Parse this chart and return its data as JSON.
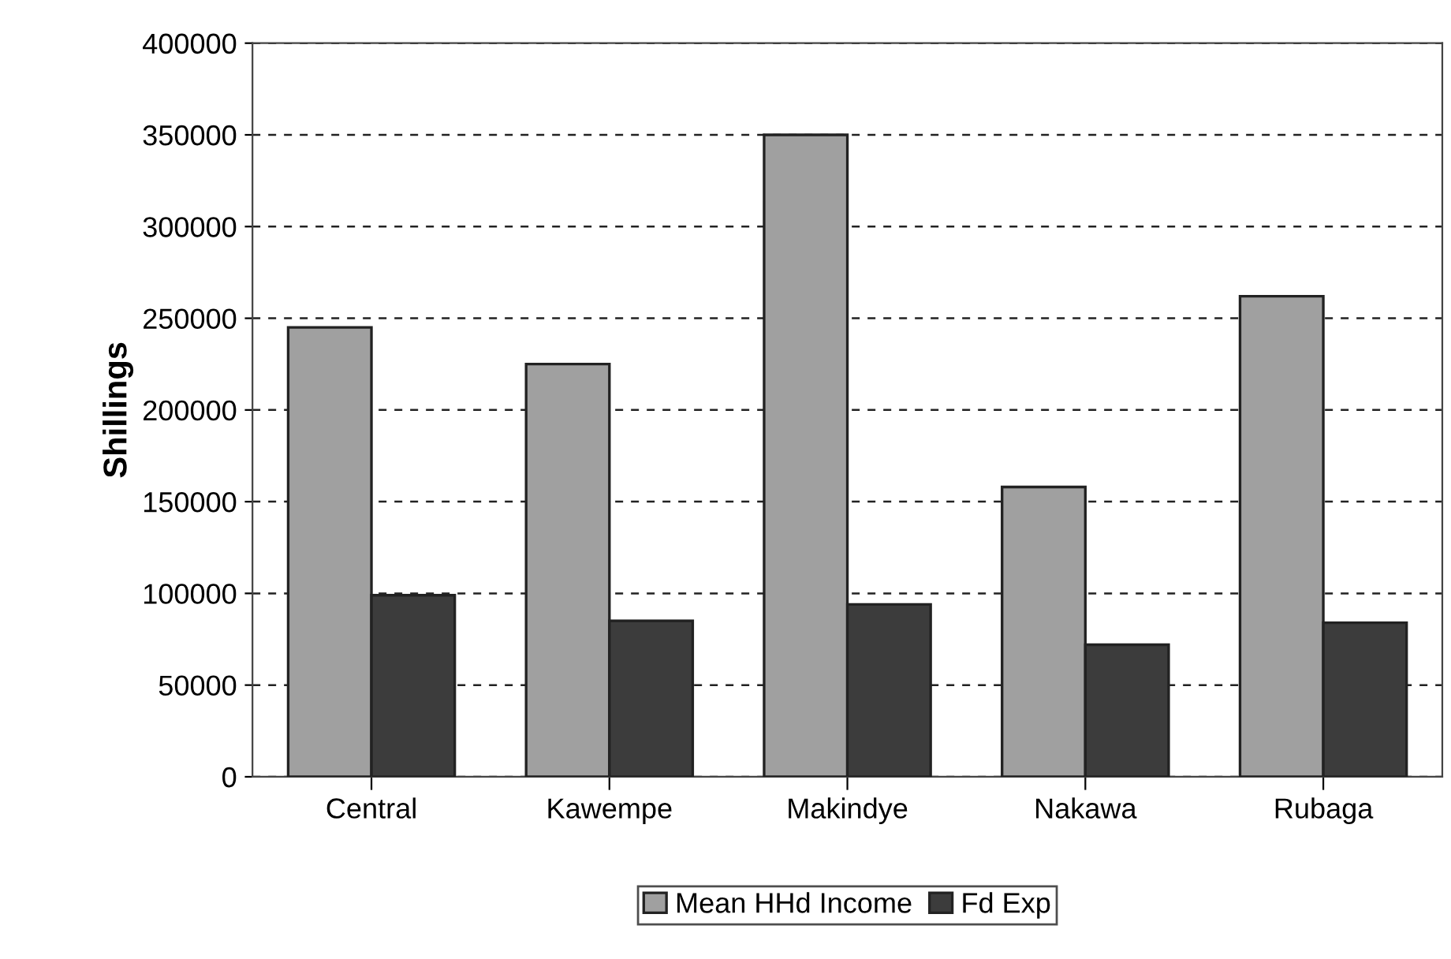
{
  "chart_data": {
    "type": "bar",
    "ylabel": "Shillings",
    "categories": [
      "Central",
      "Kawempe",
      "Makindye",
      "Nakawa",
      "Rubaga"
    ],
    "series": [
      {
        "name": "Mean HHd Income",
        "color": "#a0a0a0",
        "values": [
          245000,
          225000,
          350000,
          158000,
          262000
        ]
      },
      {
        "name": "Fd Exp",
        "color": "#3c3c3c",
        "values": [
          99000,
          85000,
          94000,
          72000,
          84000
        ]
      }
    ],
    "ylim": [
      0,
      400000
    ],
    "yticks": [
      0,
      50000,
      100000,
      150000,
      200000,
      250000,
      300000,
      350000,
      400000
    ],
    "grid": "y",
    "legend": "bottom"
  }
}
